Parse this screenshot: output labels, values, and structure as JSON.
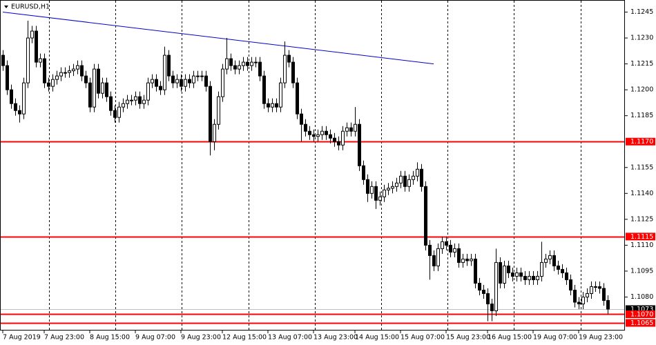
{
  "chart_data": {
    "type": "candlestick",
    "title": "EURUSD,H1",
    "categories": [
      "7 Aug 2019",
      null,
      null,
      null,
      null,
      null,
      null,
      null,
      null,
      null,
      "7 Aug 23:00",
      null,
      null,
      null,
      null,
      null,
      null,
      null,
      null,
      null,
      null,
      "8 Aug 15:00",
      null,
      null,
      null,
      null,
      null,
      null,
      null,
      null,
      null,
      null,
      "9 Aug 07:00",
      null,
      null,
      null,
      null,
      null,
      null,
      null,
      null,
      null,
      null,
      "9 Aug 23:00",
      null,
      null,
      null,
      null,
      null,
      null,
      null,
      null,
      null,
      "12 Aug 15:00",
      null,
      null,
      null,
      null,
      null,
      null,
      null,
      null,
      null,
      null,
      "13 Aug 07:00",
      null,
      null,
      null,
      null,
      null,
      null,
      null,
      null,
      null,
      null,
      "13 Aug 23:00",
      null,
      null,
      null,
      null,
      null,
      null,
      null,
      null,
      null,
      "14 Aug 15:00",
      null,
      null,
      null,
      null,
      null,
      null,
      null,
      null,
      null,
      null,
      "15 Aug 07:00",
      null,
      null,
      null,
      null,
      null,
      null,
      null,
      null,
      null,
      null,
      "15 Aug 23:00",
      null,
      null,
      null,
      null,
      null,
      null,
      null,
      null,
      null,
      "16 Aug 15:00",
      null,
      null,
      null,
      null,
      null,
      null,
      null,
      null,
      null,
      null,
      "19 Aug 07:00",
      null,
      null,
      null,
      null,
      null,
      null,
      null,
      null,
      null,
      null,
      "19 Aug 23:00",
      null,
      null,
      null,
      null,
      null,
      null,
      null
    ],
    "candles": [
      [
        1.122,
        1.1223,
        1.1211,
        1.1214
      ],
      [
        1.1214,
        1.1217,
        1.1197,
        1.12
      ],
      [
        1.12,
        1.1203,
        1.1189,
        1.1192
      ],
      [
        1.1192,
        1.1195,
        1.1185,
        1.1188
      ],
      [
        1.1188,
        1.1191,
        1.1181,
        1.1186
      ],
      [
        1.1186,
        1.1207,
        1.1183,
        1.1204
      ],
      [
        1.1204,
        1.124,
        1.1201,
        1.123
      ],
      [
        1.123,
        1.1237,
        1.1227,
        1.1234
      ],
      [
        1.1234,
        1.1237,
        1.1213,
        1.1216
      ],
      [
        1.1216,
        1.1221,
        1.1213,
        1.1218
      ],
      [
        1.1218,
        1.1221,
        1.1201,
        1.1204
      ],
      [
        1.1204,
        1.1207,
        1.1199,
        1.1202
      ],
      [
        1.1202,
        1.1209,
        1.1199,
        1.1206
      ],
      [
        1.1206,
        1.1211,
        1.1203,
        1.1208
      ],
      [
        1.1208,
        1.1213,
        1.1205,
        1.121
      ],
      [
        1.121,
        1.1213,
        1.1207,
        1.121
      ],
      [
        1.121,
        1.1214,
        1.1207,
        1.1211
      ],
      [
        1.1211,
        1.1215,
        1.1208,
        1.1212
      ],
      [
        1.1212,
        1.1217,
        1.1209,
        1.1214
      ],
      [
        1.1214,
        1.1217,
        1.1205,
        1.1208
      ],
      [
        1.1208,
        1.1211,
        1.1201,
        1.1204
      ],
      [
        1.1204,
        1.1207,
        1.1187,
        1.119
      ],
      [
        1.119,
        1.1215,
        1.1187,
        1.1212
      ],
      [
        1.1212,
        1.1215,
        1.1195,
        1.1198
      ],
      [
        1.1198,
        1.1207,
        1.1195,
        1.1204
      ],
      [
        1.1204,
        1.1207,
        1.1193,
        1.1196
      ],
      [
        1.1196,
        1.1199,
        1.1185,
        1.1188
      ],
      [
        1.1188,
        1.1191,
        1.1181,
        1.1184
      ],
      [
        1.1184,
        1.1193,
        1.1181,
        1.119
      ],
      [
        1.119,
        1.1195,
        1.1187,
        1.1192
      ],
      [
        1.1192,
        1.1197,
        1.1189,
        1.1194
      ],
      [
        1.1194,
        1.1197,
        1.1191,
        1.1194
      ],
      [
        1.1194,
        1.1199,
        1.1191,
        1.1196
      ],
      [
        1.1196,
        1.1199,
        1.1189,
        1.1192
      ],
      [
        1.1192,
        1.1197,
        1.1189,
        1.1194
      ],
      [
        1.1194,
        1.1207,
        1.1191,
        1.1204
      ],
      [
        1.1204,
        1.1209,
        1.1201,
        1.1206
      ],
      [
        1.1206,
        1.1209,
        1.1199,
        1.1202
      ],
      [
        1.1202,
        1.1205,
        1.1197,
        1.12
      ],
      [
        1.12,
        1.1225,
        1.1197,
        1.122
      ],
      [
        1.122,
        1.1223,
        1.1205,
        1.1208
      ],
      [
        1.1208,
        1.1211,
        1.1201,
        1.1204
      ],
      [
        1.1204,
        1.1209,
        1.1201,
        1.1206
      ],
      [
        1.1206,
        1.1209,
        1.1199,
        1.1202
      ],
      [
        1.1202,
        1.1209,
        1.1199,
        1.1206
      ],
      [
        1.1206,
        1.1209,
        1.1201,
        1.1204
      ],
      [
        1.1204,
        1.1211,
        1.1201,
        1.1208
      ],
      [
        1.1208,
        1.1211,
        1.1205,
        1.1208
      ],
      [
        1.1208,
        1.1211,
        1.1205,
        1.1208
      ],
      [
        1.1208,
        1.1211,
        1.1199,
        1.1202
      ],
      [
        1.1202,
        1.1205,
        1.1162,
        1.117
      ],
      [
        1.117,
        1.1183,
        1.1165,
        1.118
      ],
      [
        1.118,
        1.1199,
        1.1177,
        1.1196
      ],
      [
        1.1196,
        1.1215,
        1.1193,
        1.1212
      ],
      [
        1.1212,
        1.123,
        1.1209,
        1.1218
      ],
      [
        1.1218,
        1.1221,
        1.1211,
        1.1214
      ],
      [
        1.1214,
        1.1217,
        1.1209,
        1.1212
      ],
      [
        1.1212,
        1.1217,
        1.1209,
        1.1214
      ],
      [
        1.1214,
        1.1219,
        1.1211,
        1.1216
      ],
      [
        1.1216,
        1.1219,
        1.1211,
        1.1214
      ],
      [
        1.1214,
        1.1219,
        1.1211,
        1.1216
      ],
      [
        1.1216,
        1.1219,
        1.1213,
        1.1216
      ],
      [
        1.1216,
        1.1219,
        1.1205,
        1.1208
      ],
      [
        1.1208,
        1.1211,
        1.1189,
        1.1192
      ],
      [
        1.1192,
        1.1195,
        1.1187,
        1.119
      ],
      [
        1.119,
        1.1195,
        1.1187,
        1.1192
      ],
      [
        1.1192,
        1.1195,
        1.1187,
        1.119
      ],
      [
        1.119,
        1.1207,
        1.1187,
        1.1204
      ],
      [
        1.1204,
        1.1228,
        1.1201,
        1.122
      ],
      [
        1.122,
        1.1223,
        1.1213,
        1.1216
      ],
      [
        1.1216,
        1.1219,
        1.1201,
        1.1204
      ],
      [
        1.1204,
        1.1207,
        1.1183,
        1.1186
      ],
      [
        1.1186,
        1.1189,
        1.117,
        1.118
      ],
      [
        1.118,
        1.1183,
        1.1173,
        1.1176
      ],
      [
        1.1176,
        1.1179,
        1.1171,
        1.1174
      ],
      [
        1.1174,
        1.1177,
        1.117,
        1.1173
      ],
      [
        1.1173,
        1.1177,
        1.117,
        1.1174
      ],
      [
        1.1174,
        1.1179,
        1.1171,
        1.1176
      ],
      [
        1.1176,
        1.1179,
        1.1171,
        1.1174
      ],
      [
        1.1174,
        1.1177,
        1.1169,
        1.1172
      ],
      [
        1.1172,
        1.1175,
        1.1167,
        1.117
      ],
      [
        1.117,
        1.1173,
        1.1165,
        1.1168
      ],
      [
        1.1168,
        1.1179,
        1.1165,
        1.1176
      ],
      [
        1.1176,
        1.1181,
        1.1173,
        1.1178
      ],
      [
        1.1178,
        1.1181,
        1.1173,
        1.1176
      ],
      [
        1.1176,
        1.119,
        1.1173,
        1.118
      ],
      [
        1.118,
        1.1183,
        1.1153,
        1.1156
      ],
      [
        1.1156,
        1.1159,
        1.1145,
        1.1148
      ],
      [
        1.1148,
        1.1151,
        1.1135,
        1.114
      ],
      [
        1.114,
        1.1147,
        1.1137,
        1.1144
      ],
      [
        1.1144,
        1.1147,
        1.1131,
        1.1136
      ],
      [
        1.1136,
        1.1141,
        1.1133,
        1.1138
      ],
      [
        1.1138,
        1.1145,
        1.1135,
        1.1142
      ],
      [
        1.1142,
        1.1146,
        1.1139,
        1.1143
      ],
      [
        1.1143,
        1.1147,
        1.114,
        1.1144
      ],
      [
        1.1144,
        1.1149,
        1.1141,
        1.1146
      ],
      [
        1.1146,
        1.1153,
        1.1143,
        1.115
      ],
      [
        1.115,
        1.1153,
        1.1141,
        1.1144
      ],
      [
        1.1144,
        1.1151,
        1.1141,
        1.1148
      ],
      [
        1.1148,
        1.1153,
        1.1145,
        1.115
      ],
      [
        1.115,
        1.1158,
        1.1147,
        1.1154
      ],
      [
        1.1154,
        1.1157,
        1.1141,
        1.1144
      ],
      [
        1.1144,
        1.1147,
        1.1107,
        1.111
      ],
      [
        1.111,
        1.1113,
        1.109,
        1.1104
      ],
      [
        1.1104,
        1.1107,
        1.1095,
        1.1098
      ],
      [
        1.1098,
        1.1111,
        1.1095,
        1.1108
      ],
      [
        1.1108,
        1.1115,
        1.1105,
        1.1112
      ],
      [
        1.1112,
        1.1115,
        1.1107,
        1.111
      ],
      [
        1.111,
        1.1113,
        1.1103,
        1.1106
      ],
      [
        1.1106,
        1.1111,
        1.1103,
        1.1108
      ],
      [
        1.1108,
        1.1111,
        1.1097,
        1.11
      ],
      [
        1.11,
        1.1105,
        1.1097,
        1.1102
      ],
      [
        1.1102,
        1.1105,
        1.1098,
        1.1101
      ],
      [
        1.1101,
        1.1105,
        1.1098,
        1.1102
      ],
      [
        1.1102,
        1.1105,
        1.1085,
        1.1088
      ],
      [
        1.1088,
        1.1091,
        1.1081,
        1.1084
      ],
      [
        1.1084,
        1.1087,
        1.1079,
        1.1082
      ],
      [
        1.1082,
        1.1085,
        1.1066,
        1.1076
      ],
      [
        1.1076,
        1.1079,
        1.1066,
        1.1072
      ],
      [
        1.1072,
        1.1108,
        1.1069,
        1.11
      ],
      [
        1.11,
        1.1103,
        1.1085,
        1.1088
      ],
      [
        1.1088,
        1.1101,
        1.1085,
        1.1098
      ],
      [
        1.1098,
        1.1101,
        1.1091,
        1.1094
      ],
      [
        1.1094,
        1.1097,
        1.1089,
        1.1092
      ],
      [
        1.1092,
        1.1097,
        1.1089,
        1.1094
      ],
      [
        1.1094,
        1.1097,
        1.1089,
        1.1092
      ],
      [
        1.1092,
        1.1095,
        1.1087,
        1.109
      ],
      [
        1.109,
        1.1095,
        1.1087,
        1.1092
      ],
      [
        1.1092,
        1.1095,
        1.1087,
        1.109
      ],
      [
        1.109,
        1.1095,
        1.1087,
        1.1092
      ],
      [
        1.1092,
        1.1112,
        1.1089,
        1.11
      ],
      [
        1.11,
        1.1105,
        1.1097,
        1.1102
      ],
      [
        1.1102,
        1.1107,
        1.1099,
        1.1104
      ],
      [
        1.1104,
        1.1107,
        1.1095,
        1.1098
      ],
      [
        1.1098,
        1.1101,
        1.1093,
        1.1096
      ],
      [
        1.1096,
        1.1099,
        1.1091,
        1.1094
      ],
      [
        1.1094,
        1.1097,
        1.1087,
        1.109
      ],
      [
        1.109,
        1.1093,
        1.1081,
        1.1084
      ],
      [
        1.1084,
        1.1087,
        1.1074,
        1.1077
      ],
      [
        1.1077,
        1.108,
        1.1073,
        1.1076
      ],
      [
        1.1076,
        1.1083,
        1.1073,
        1.108
      ],
      [
        1.108,
        1.1085,
        1.1077,
        1.1082
      ],
      [
        1.1082,
        1.1089,
        1.1079,
        1.1086
      ],
      [
        1.1086,
        1.1089,
        1.1083,
        1.1086
      ],
      [
        1.1086,
        1.1089,
        1.1082,
        1.1085
      ],
      [
        1.1085,
        1.1088,
        1.1075,
        1.1078
      ],
      [
        1.1078,
        1.1081,
        1.107,
        1.1073
      ]
    ],
    "up_color": "#ffffff",
    "down_color": "#000000",
    "wick_color": "#000000",
    "ylim": [
      1.1061,
      1.1252
    ],
    "yticks": [
      {
        "value": 1.1245,
        "label": "1.1245"
      },
      {
        "value": 1.123,
        "label": "1.1230"
      },
      {
        "value": 1.1215,
        "label": "1.1215"
      },
      {
        "value": 1.12,
        "label": "1.1200"
      },
      {
        "value": 1.1185,
        "label": "1.1185"
      },
      {
        "value": 1.1155,
        "label": "1.1155"
      },
      {
        "value": 1.114,
        "label": "1.1140"
      },
      {
        "value": 1.1125,
        "label": "1.1125"
      },
      {
        "value": 1.111,
        "label": "1.1110"
      },
      {
        "value": 1.1095,
        "label": "1.1095"
      },
      {
        "value": 1.108,
        "label": "1.1080"
      }
    ],
    "levels": [
      {
        "value": 1.117,
        "label": "1.1170",
        "color": "#ff0000",
        "label_bg": "#ff0000"
      },
      {
        "value": 1.1115,
        "label": "1.1115",
        "color": "#ff0000",
        "label_bg": "#ff0000"
      },
      {
        "value": 1.1073,
        "label": "1.1073",
        "color": "#c0c0c0",
        "label_bg": "#000000"
      },
      {
        "value": 1.107,
        "label": "1.1070",
        "color": "#ff0000",
        "label_bg": "#ff0000"
      },
      {
        "value": 1.1065,
        "label": "1.1065",
        "color": "#ff0000",
        "label_bg": "#ff0000"
      }
    ],
    "trendline": {
      "from": [
        0,
        1.1245
      ],
      "to": [
        104,
        1.1215
      ],
      "color": "#0000cd"
    }
  }
}
